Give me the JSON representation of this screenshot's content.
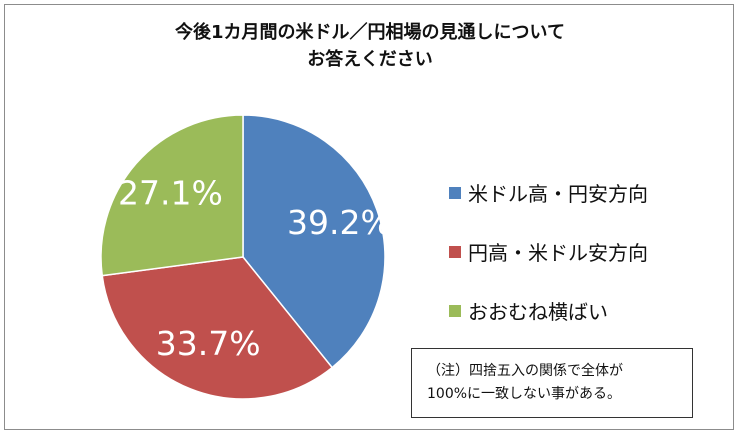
{
  "chart_data": {
    "type": "pie",
    "title_lines": [
      "今後1カ月間の米ドル／円相場の見通しについて",
      "お答えください"
    ],
    "series": [
      {
        "name": "米ドル高・円安方向",
        "value": 39.2,
        "label": "39.2%",
        "color": "#4F81BD"
      },
      {
        "name": "円高・米ドル安方向",
        "value": 33.7,
        "label": "33.7%",
        "color": "#C0504D"
      },
      {
        "name": "おおむね横ばい",
        "value": 27.1,
        "label": "27.1%",
        "color": "#9BBB59"
      }
    ],
    "start": "12 o'clock",
    "direction": "clockwise",
    "legend_position": "right",
    "note_lines": [
      "（注）四捨五入の関係で全体が",
      "100%に一致しない事がある。"
    ]
  }
}
